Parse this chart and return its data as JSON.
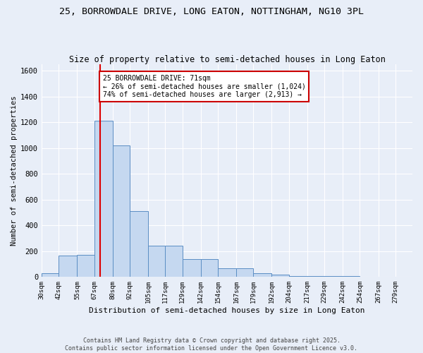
{
  "title1": "25, BORROWDALE DRIVE, LONG EATON, NOTTINGHAM, NG10 3PL",
  "title2": "Size of property relative to semi-detached houses in Long Eaton",
  "xlabel": "Distribution of semi-detached houses by size in Long Eaton",
  "ylabel": "Number of semi-detached properties",
  "bin_labels": [
    "30sqm",
    "42sqm",
    "55sqm",
    "67sqm",
    "80sqm",
    "92sqm",
    "105sqm",
    "117sqm",
    "129sqm",
    "142sqm",
    "154sqm",
    "167sqm",
    "179sqm",
    "192sqm",
    "204sqm",
    "217sqm",
    "229sqm",
    "242sqm",
    "254sqm",
    "267sqm",
    "279sqm"
  ],
  "bin_edges": [
    30,
    42,
    55,
    67,
    80,
    92,
    105,
    117,
    129,
    142,
    154,
    167,
    179,
    192,
    204,
    217,
    229,
    242,
    254,
    267,
    279
  ],
  "bar_heights": [
    30,
    165,
    170,
    1210,
    1020,
    510,
    245,
    245,
    140,
    140,
    65,
    65,
    30,
    20,
    10,
    10,
    5,
    5,
    0,
    0
  ],
  "bar_color": "#c5d8f0",
  "bar_edge_color": "#5b8ec4",
  "property_size": 71,
  "red_line_color": "#dd0000",
  "annotation_text": "25 BORROWDALE DRIVE: 71sqm\n← 26% of semi-detached houses are smaller (1,024)\n74% of semi-detached houses are larger (2,913) →",
  "annotation_box_color": "#ffffff",
  "annotation_box_edge": "#cc0000",
  "ylim": [
    0,
    1650
  ],
  "yticks": [
    0,
    200,
    400,
    600,
    800,
    1000,
    1200,
    1400,
    1600
  ],
  "footer1": "Contains HM Land Registry data © Crown copyright and database right 2025.",
  "footer2": "Contains public sector information licensed under the Open Government Licence v3.0.",
  "bg_color": "#e8eef8",
  "grid_color": "#ffffff",
  "title1_fontsize": 9.5,
  "title2_fontsize": 8.5
}
